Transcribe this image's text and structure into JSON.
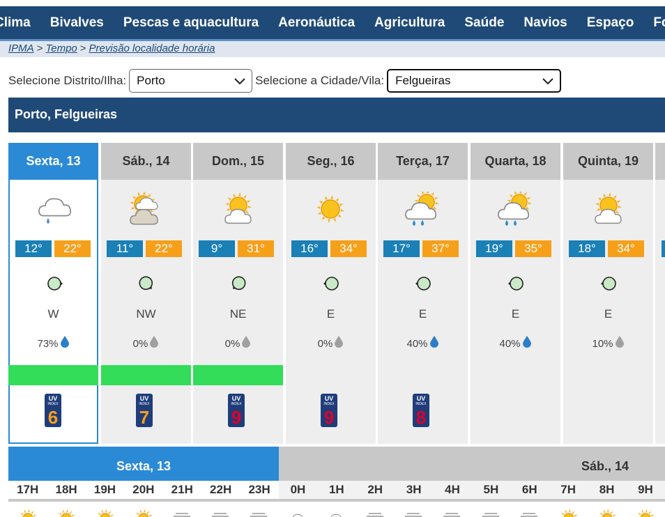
{
  "nav": {
    "items": [
      "Clima",
      "Bivalves",
      "Pescas e aquacultura",
      "Aeronáutica",
      "Agricultura",
      "Saúde",
      "Navios",
      "Espaço",
      "Fogos"
    ]
  },
  "breadcrumb": {
    "items": [
      "IPMA",
      "Tempo",
      "Previsão localidade horária"
    ],
    "separator": ">"
  },
  "selectors": {
    "distrito_label": "Selecione Distrito/Ilha:",
    "distrito_value": "Porto",
    "cidade_label": "Selecione a Cidade/Vila:",
    "cidade_value": "Felgueiras"
  },
  "location": {
    "title": "Porto, Felgueiras"
  },
  "colors": {
    "nav_bg": "#1f4a77",
    "selected_day": "#2b8ad6",
    "temp_min": "#1a80b6",
    "temp_max": "#f6a01a",
    "green_bar": "#33dd5a",
    "day_bg": "#eeeeee"
  },
  "days": [
    {
      "label": "Sexta, 13",
      "icon": "rain-cloud-icon",
      "tmin": "12°",
      "tmax": "22°",
      "wind_dir": "W",
      "wind_icon": "wind-west-icon",
      "precip": "73%",
      "precip_level": "high",
      "green_bar": true,
      "uv": "6",
      "uv_color": "#f6a01a"
    },
    {
      "label": "Sáb., 14",
      "icon": "cloudy-sun-icon",
      "tmin": "11°",
      "tmax": "22°",
      "wind_dir": "NW",
      "wind_icon": "wind-northwest-icon",
      "precip": "0%",
      "precip_level": "none",
      "green_bar": true,
      "uv": "7",
      "uv_color": "#f6a01a"
    },
    {
      "label": "Dom., 15",
      "icon": "sun-cloud-icon",
      "tmin": "9°",
      "tmax": "31°",
      "wind_dir": "NE",
      "wind_icon": "wind-northeast-icon",
      "precip": "0%",
      "precip_level": "none",
      "green_bar": true,
      "uv": "9",
      "uv_color": "#e0002a"
    },
    {
      "label": "Seg., 16",
      "icon": "sun-icon",
      "tmin": "16°",
      "tmax": "34°",
      "wind_dir": "E",
      "wind_icon": "wind-east-icon",
      "precip": "0%",
      "precip_level": "none",
      "green_bar": false,
      "uv": "9",
      "uv_color": "#e0002a"
    },
    {
      "label": "Terça, 17",
      "icon": "sun-rain-cloud-icon",
      "tmin": "17°",
      "tmax": "37°",
      "wind_dir": "E",
      "wind_icon": "wind-east-icon",
      "precip": "40%",
      "precip_level": "high",
      "green_bar": false,
      "uv": "8",
      "uv_color": "#e0002a"
    },
    {
      "label": "Quarta, 18",
      "icon": "sun-rain-cloud-icon",
      "tmin": "19°",
      "tmax": "35°",
      "wind_dir": "E",
      "wind_icon": "wind-east-icon",
      "precip": "40%",
      "precip_level": "high",
      "green_bar": false,
      "uv": "",
      "uv_color": ""
    },
    {
      "label": "Quinta, 19",
      "icon": "sun-cloud-icon",
      "tmin": "18°",
      "tmax": "34°",
      "wind_dir": "E",
      "wind_icon": "wind-east-icon",
      "precip": "10%",
      "precip_level": "low",
      "green_bar": false,
      "uv": "",
      "uv_color": ""
    }
  ],
  "uv_label": "UV",
  "uv_sublabel": "INDEX",
  "hourly": {
    "left_day": "Sexta, 13",
    "right_day": "Sáb., 14",
    "hours": [
      "17H",
      "18H",
      "19H",
      "20H",
      "21H",
      "22H",
      "23H",
      "0H",
      "1H",
      "2H",
      "3H",
      "4H",
      "5H",
      "6H",
      "7H",
      "8H",
      "9H"
    ]
  }
}
